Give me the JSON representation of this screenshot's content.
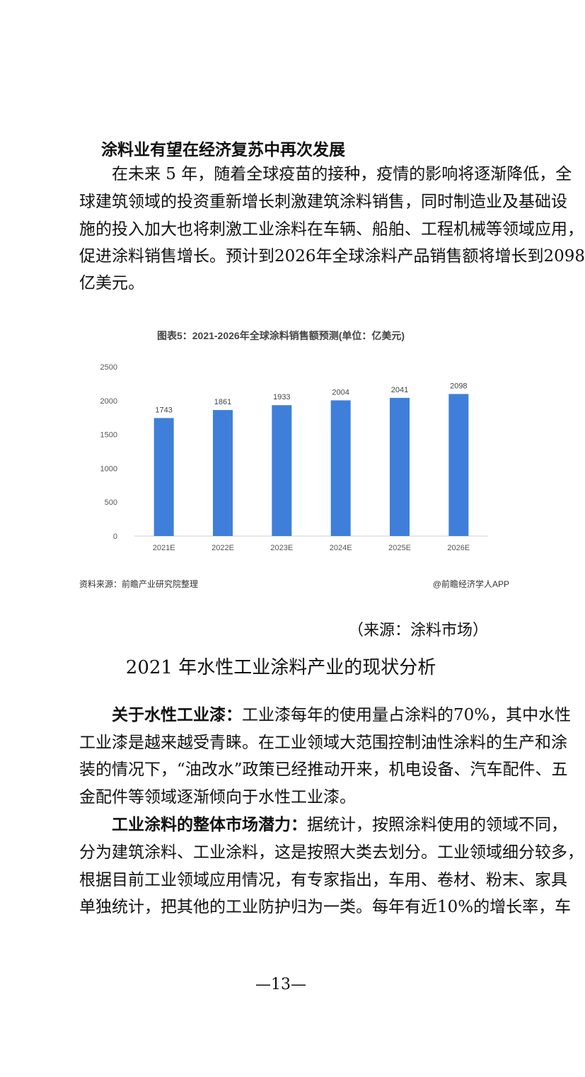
{
  "section1": {
    "heading": "涂料业有望在经济复苏中再次发展",
    "lines": [
      "　　在未来 5 年，随着全球疫苗的接种，疫情的影响将逐渐降低，全",
      "球建筑领域的投资重新增长刺激建筑涂料销售，同时制造业及基础设",
      "施的投入加大也将刺激工业涂料在车辆、船舶、工程机械等领域应用，",
      "促进涂料销售增长。预计到2026年全球涂料产品销售额将增长到2098",
      "亿美元。"
    ]
  },
  "chart_data": {
    "type": "bar",
    "title": "图表5：2021-2026年全球涂料销售额预测(单位：亿美元)",
    "categories": [
      "2021E",
      "2022E",
      "2023E",
      "2024E",
      "2025E",
      "2026E"
    ],
    "values": [
      1743,
      1861,
      1933,
      2004,
      2041,
      2098
    ],
    "data_labels": [
      "1743",
      "1861",
      "1933",
      "2004",
      "2041",
      "2098"
    ],
    "yticks": [
      "0",
      "500",
      "1000",
      "1500",
      "2000",
      "2500"
    ],
    "ylim": [
      0,
      2500
    ],
    "grid": false,
    "bar_color": "#3f7fd9",
    "source": "资料来源：前瞻产业研究院整理",
    "credit": "@前瞻经济学人APP",
    "watermark": "前瞻产业研究院"
  },
  "source_note": "（来源：涂料市场）",
  "section2": {
    "title": "2021 年水性工业涂料产业的现状分析",
    "paragraphs": [
      {
        "lead": "　　关于水性工业漆：",
        "lines": [
          "工业漆每年的使用量占涂料的70%，其中水性",
          "工业漆是越来越受青睐。在工业领域大范围控制油性涂料的生产和涂",
          "装的情况下，“油改水”政策已经推动开来，机电设备、汽车配件、五",
          "金配件等领域逐渐倾向于水性工业漆。"
        ]
      },
      {
        "lead": "　　工业涂料的整体市场潜力：",
        "lines": [
          "据统计，按照涂料使用的领域不同，",
          "分为建筑涂料、工业涂料，这是按照大类去划分。工业领域细分较多，",
          "根据目前工业领域应用情况，有专家指出，车用、卷材、粉末、家具",
          "单独统计，把其他的工业防护归为一类。每年有近10%的增长率，车"
        ]
      }
    ]
  },
  "page_number": "—13—"
}
